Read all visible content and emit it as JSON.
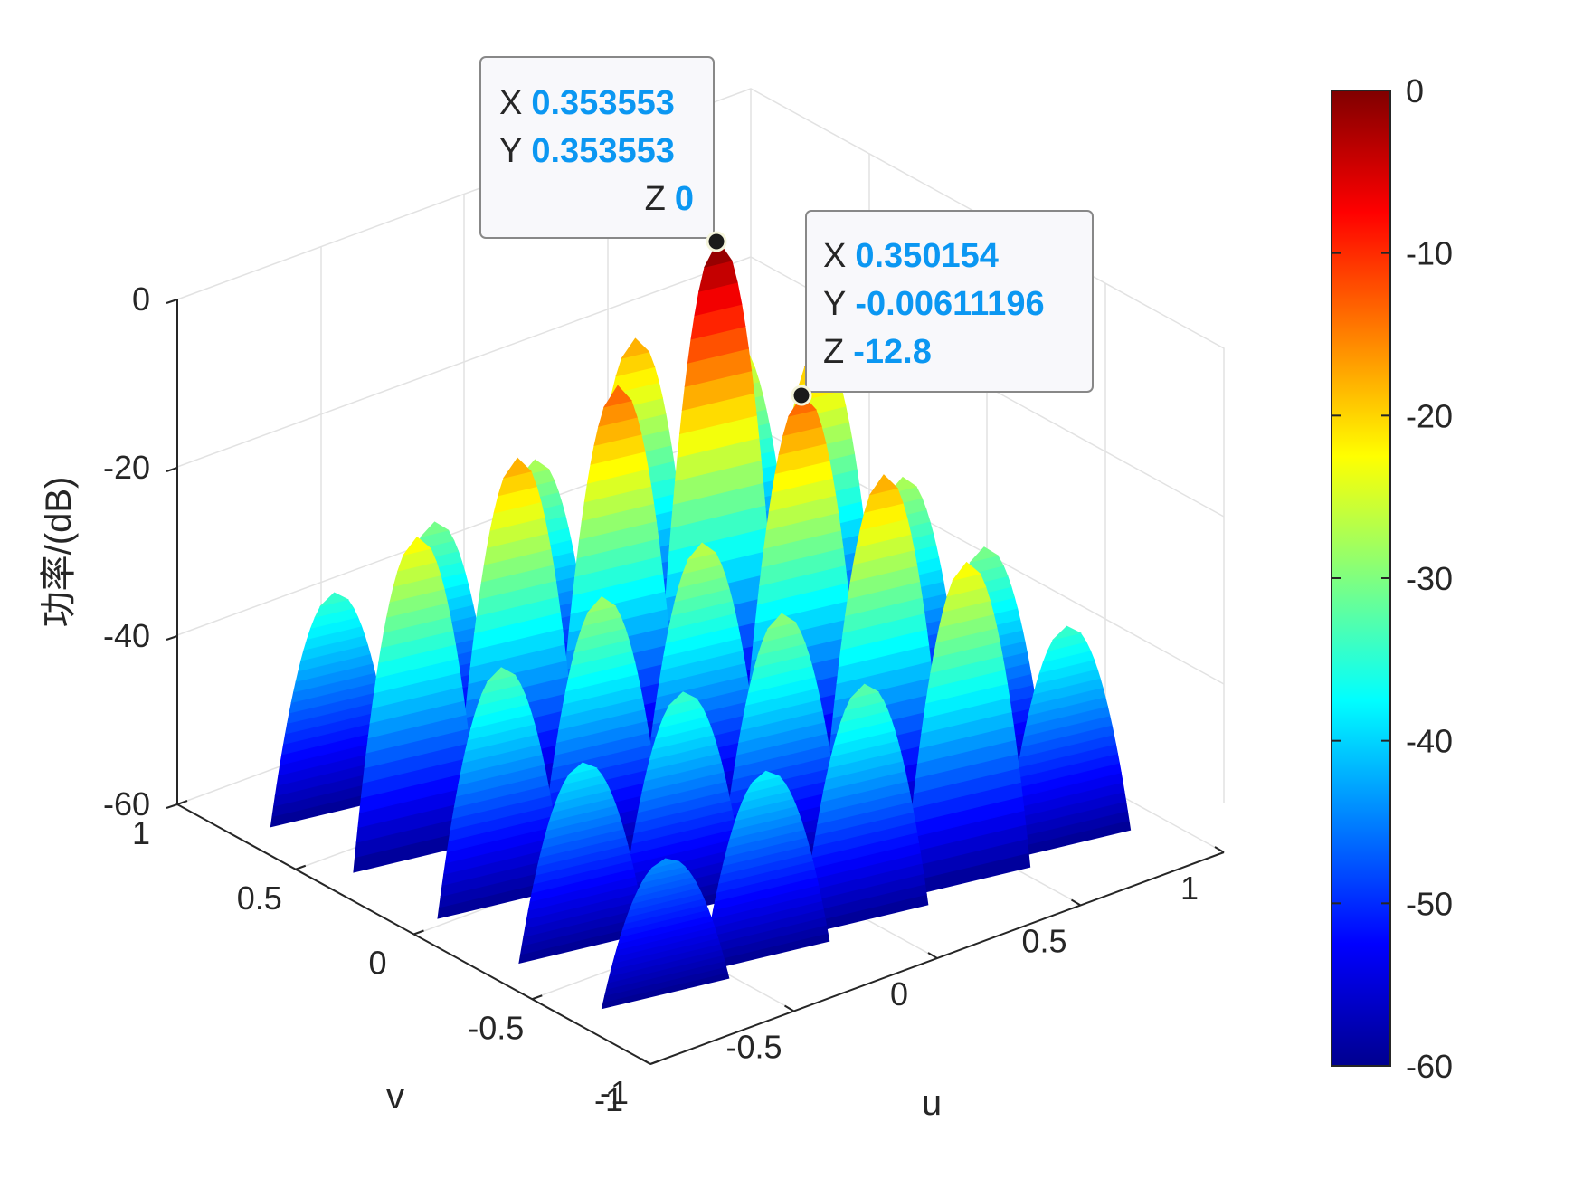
{
  "chart_data": {
    "type": "surface",
    "title": "",
    "xlabel": "u",
    "ylabel": "v",
    "zlabel": "功率/(dB)",
    "xlim": [
      -1,
      1
    ],
    "ylim": [
      -1,
      1
    ],
    "zlim": [
      -60,
      0
    ],
    "grid": true,
    "colormap": "jet",
    "x_ticks": [
      "-1",
      "-0.5",
      "0",
      "0.5",
      "1"
    ],
    "y_ticks": [
      "-1",
      "-0.5",
      "0",
      "0.5",
      "1"
    ],
    "z_ticks": [
      "-60",
      "-40",
      "-20",
      "0"
    ],
    "colorbar": {
      "ticks": [
        "0",
        "-10",
        "-20",
        "-30",
        "-40",
        "-50",
        "-60"
      ],
      "range": [
        -60,
        0
      ],
      "colors": [
        "#00008f",
        "#0000ff",
        "#00ffff",
        "#ffff00",
        "#ff0000",
        "#800000"
      ]
    },
    "surface_peaks": [
      {
        "u": 0.35,
        "v": 0.35,
        "z": 0
      },
      {
        "u": 0.35,
        "v": -0.006,
        "z": -12.8
      },
      {
        "u": 0.0,
        "v": 0.35,
        "z": -12.8
      },
      {
        "u": 0.7,
        "v": 0.35,
        "z": -17
      },
      {
        "u": 0.35,
        "v": 0.7,
        "z": -17
      },
      {
        "u": -0.35,
        "v": 0.35,
        "z": -17
      },
      {
        "u": 0.35,
        "v": -0.35,
        "z": -17
      },
      {
        "u": -0.7,
        "v": 0.35,
        "z": -22
      },
      {
        "u": 0.35,
        "v": -0.7,
        "z": -22
      },
      {
        "u": 0.0,
        "v": -0.006,
        "z": -26
      },
      {
        "u": 0.7,
        "v": -0.006,
        "z": -27
      },
      {
        "u": 0.0,
        "v": 0.7,
        "z": -27
      },
      {
        "u": -0.35,
        "v": -0.006,
        "z": -28
      },
      {
        "u": -0.006,
        "v": -0.35,
        "z": -29
      },
      {
        "u": -0.35,
        "v": -0.35,
        "z": -34
      },
      {
        "u": -0.7,
        "v": -0.006,
        "z": -32
      },
      {
        "u": -0.006,
        "v": -0.7,
        "z": -32
      },
      {
        "u": 0.7,
        "v": -0.35,
        "z": -30
      },
      {
        "u": -0.35,
        "v": 0.7,
        "z": -30
      },
      {
        "u": 0.7,
        "v": 0.7,
        "z": -22
      },
      {
        "u": -0.7,
        "v": -0.35,
        "z": -38
      },
      {
        "u": -0.35,
        "v": -0.7,
        "z": -38
      },
      {
        "u": -0.7,
        "v": 0.7,
        "z": -34
      },
      {
        "u": 0.7,
        "v": -0.7,
        "z": -34
      },
      {
        "u": -0.7,
        "v": -0.7,
        "z": -44
      }
    ],
    "datatips": [
      {
        "x_key": "X",
        "x": "0.353553",
        "y_key": "Y",
        "y": "0.353553",
        "z_key": "Z",
        "z": "0"
      },
      {
        "x_key": "X",
        "x": "0.350154",
        "y_key": "Y",
        "y": "-0.00611196",
        "z_key": "Z",
        "z": "-12.8"
      }
    ]
  }
}
